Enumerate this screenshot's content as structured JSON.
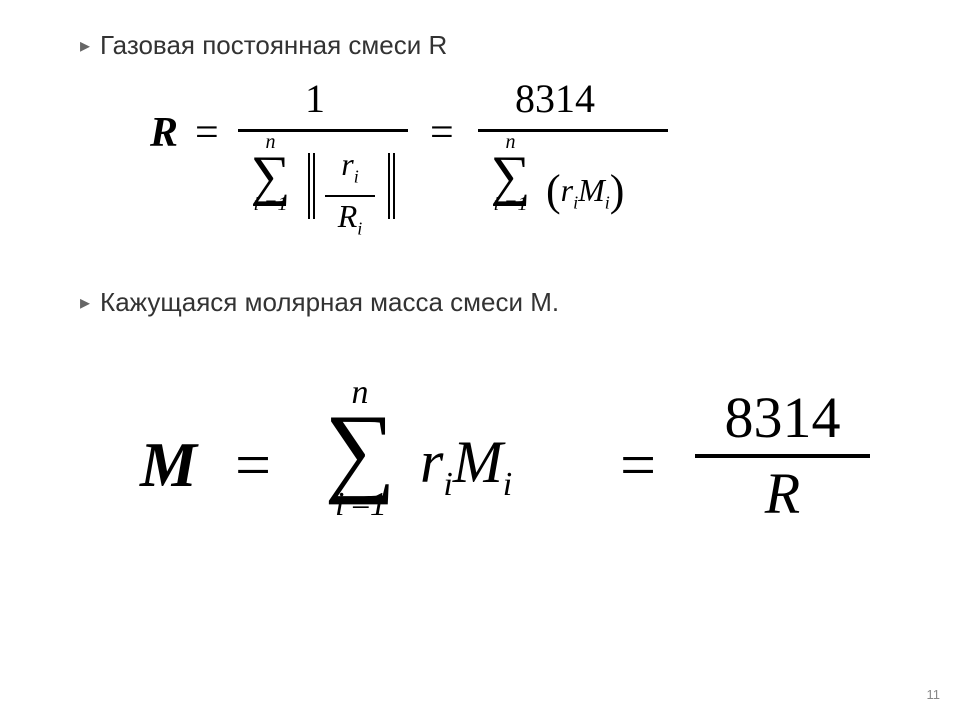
{
  "background_color": "#ffffff",
  "text_color": "#000000",
  "body_font": "Arial",
  "math_font": "Times New Roman",
  "bullets": {
    "marker": "▸",
    "line1": "Газовая постоянная смеси R",
    "line2": "Кажущаяся молярная масса смеси М."
  },
  "equation1": {
    "lhs": "R",
    "numerator1": "1",
    "sum_upper": "n",
    "sum_lower": "i =1",
    "inner_num": "r",
    "inner_num_sub": "i",
    "inner_den": "R",
    "inner_den_sub": "i",
    "numerator2": "8314",
    "term_r": "r",
    "term_r_sub": "i",
    "term_M": "M",
    "term_M_sub": "i"
  },
  "equation2": {
    "lhs": "M",
    "sum_upper": "n",
    "sum_lower": "i =1",
    "term_r": "r",
    "term_r_sub": "i",
    "term_M": "M",
    "term_M_sub": "i",
    "frac_num": "8314",
    "frac_den": "R"
  },
  "page_number": "11"
}
